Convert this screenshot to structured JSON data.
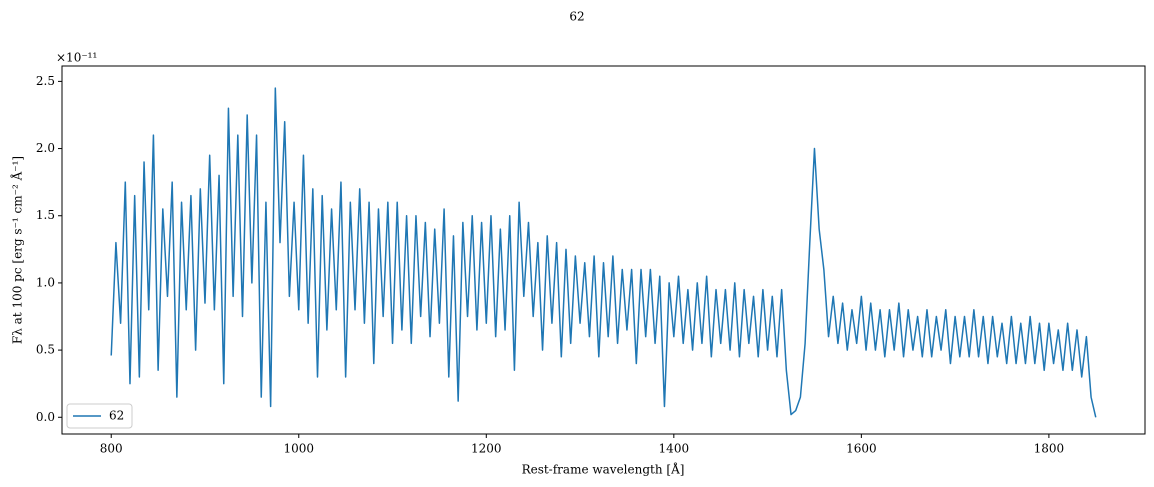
{
  "chart_data": {
    "type": "line",
    "title": "62",
    "xlabel": "Rest-frame wavelength [Å]",
    "ylabel": "Fλ at 100 pc [erg s⁻¹ cm⁻² Å⁻¹]",
    "y_offset_label": "×10⁻¹¹",
    "xlim": [
      747.5,
      1902.5
    ],
    "ylim": [
      -0.1245,
      2.6145
    ],
    "xticks": [
      800,
      1000,
      1200,
      1400,
      1600,
      1800
    ],
    "yticks": [
      {
        "value": 0,
        "label": "0.0"
      },
      {
        "value": 0.5,
        "label": "0.5"
      },
      {
        "value": 1,
        "label": "1.0"
      },
      {
        "value": 1.5,
        "label": "1.5"
      },
      {
        "value": 2,
        "label": "2.0"
      },
      {
        "value": 2.5,
        "label": "2.5"
      }
    ],
    "legend": "lower left",
    "x": [
      800,
      805,
      810,
      815,
      820,
      825,
      830,
      835,
      840,
      845,
      850,
      855,
      860,
      865,
      870,
      875,
      880,
      885,
      890,
      895,
      900,
      905,
      910,
      915,
      920,
      925,
      930,
      935,
      940,
      945,
      950,
      955,
      960,
      965,
      970,
      975,
      980,
      985,
      990,
      995,
      1000,
      1005,
      1010,
      1015,
      1020,
      1025,
      1030,
      1035,
      1040,
      1045,
      1050,
      1055,
      1060,
      1065,
      1070,
      1075,
      1080,
      1085,
      1090,
      1095,
      1100,
      1105,
      1110,
      1115,
      1120,
      1125,
      1130,
      1135,
      1140,
      1145,
      1150,
      1155,
      1160,
      1165,
      1170,
      1175,
      1180,
      1185,
      1190,
      1195,
      1200,
      1205,
      1210,
      1215,
      1220,
      1225,
      1230,
      1235,
      1240,
      1245,
      1250,
      1255,
      1260,
      1265,
      1270,
      1275,
      1280,
      1285,
      1290,
      1295,
      1300,
      1305,
      1310,
      1315,
      1320,
      1325,
      1330,
      1335,
      1340,
      1345,
      1350,
      1355,
      1360,
      1365,
      1370,
      1375,
      1380,
      1385,
      1390,
      1395,
      1400,
      1405,
      1410,
      1415,
      1420,
      1425,
      1430,
      1435,
      1440,
      1445,
      1450,
      1455,
      1460,
      1465,
      1470,
      1475,
      1480,
      1485,
      1490,
      1495,
      1500,
      1505,
      1510,
      1515,
      1520,
      1525,
      1530,
      1535,
      1540,
      1545,
      1550,
      1555,
      1560,
      1565,
      1570,
      1575,
      1580,
      1585,
      1590,
      1595,
      1600,
      1605,
      1610,
      1615,
      1620,
      1625,
      1630,
      1635,
      1640,
      1645,
      1650,
      1655,
      1660,
      1665,
      1670,
      1675,
      1680,
      1685,
      1690,
      1695,
      1700,
      1705,
      1710,
      1715,
      1720,
      1725,
      1730,
      1735,
      1740,
      1745,
      1750,
      1755,
      1760,
      1765,
      1770,
      1775,
      1780,
      1785,
      1790,
      1795,
      1800,
      1805,
      1810,
      1815,
      1820,
      1825,
      1830,
      1835,
      1840,
      1845,
      1850
    ],
    "series": [
      {
        "name": "62",
        "color": "#1f77b4",
        "values": [
          0.46,
          1.3,
          0.7,
          1.75,
          0.25,
          1.65,
          0.3,
          1.9,
          0.8,
          2.1,
          0.35,
          1.55,
          0.9,
          1.75,
          0.15,
          1.6,
          0.8,
          1.65,
          0.5,
          1.7,
          0.85,
          1.95,
          0.8,
          1.8,
          0.25,
          2.3,
          0.9,
          2.1,
          0.75,
          2.25,
          1.0,
          2.1,
          0.15,
          1.6,
          0.08,
          2.45,
          1.3,
          2.2,
          0.9,
          1.6,
          0.8,
          1.95,
          0.7,
          1.7,
          0.3,
          1.65,
          0.65,
          1.55,
          0.8,
          1.75,
          0.3,
          1.6,
          0.8,
          1.7,
          0.7,
          1.6,
          0.4,
          1.55,
          0.75,
          1.6,
          0.55,
          1.6,
          0.65,
          1.5,
          0.55,
          1.5,
          0.75,
          1.45,
          0.6,
          1.4,
          0.7,
          1.55,
          0.3,
          1.35,
          0.12,
          1.45,
          0.75,
          1.5,
          0.65,
          1.45,
          0.7,
          1.5,
          0.6,
          1.4,
          0.65,
          1.5,
          0.35,
          1.6,
          0.9,
          1.45,
          0.75,
          1.3,
          0.5,
          1.35,
          0.7,
          1.3,
          0.45,
          1.25,
          0.55,
          1.2,
          0.7,
          1.15,
          0.6,
          1.2,
          0.45,
          1.15,
          0.6,
          1.2,
          0.55,
          1.1,
          0.65,
          1.1,
          0.4,
          1.1,
          0.6,
          1.1,
          0.55,
          1.05,
          0.08,
          1.0,
          0.6,
          1.05,
          0.55,
          0.95,
          0.5,
          1.0,
          0.55,
          1.05,
          0.45,
          0.95,
          0.55,
          0.95,
          0.5,
          1.0,
          0.45,
          0.95,
          0.55,
          0.9,
          0.45,
          0.95,
          0.5,
          0.9,
          0.45,
          0.95,
          0.35,
          0.02,
          0.05,
          0.15,
          0.55,
          1.3,
          2.0,
          1.4,
          1.1,
          0.6,
          0.9,
          0.55,
          0.85,
          0.5,
          0.8,
          0.55,
          0.9,
          0.5,
          0.85,
          0.5,
          0.8,
          0.45,
          0.8,
          0.5,
          0.85,
          0.45,
          0.8,
          0.5,
          0.75,
          0.45,
          0.8,
          0.45,
          0.75,
          0.5,
          0.8,
          0.4,
          0.75,
          0.45,
          0.75,
          0.45,
          0.8,
          0.45,
          0.75,
          0.4,
          0.75,
          0.45,
          0.7,
          0.4,
          0.75,
          0.4,
          0.7,
          0.4,
          0.75,
          0.4,
          0.7,
          0.35,
          0.7,
          0.4,
          0.65,
          0.35,
          0.7,
          0.35,
          0.65,
          0.3,
          0.6,
          0.15,
          0.0
        ]
      }
    ]
  }
}
